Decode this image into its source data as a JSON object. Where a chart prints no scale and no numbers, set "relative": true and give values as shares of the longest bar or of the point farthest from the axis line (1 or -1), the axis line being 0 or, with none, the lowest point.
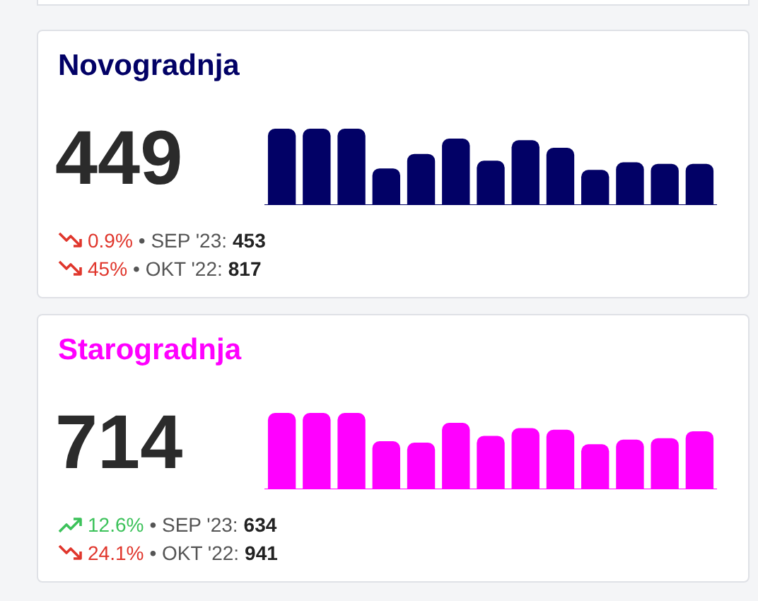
{
  "chart_data": [
    {
      "type": "bar",
      "title": "Novogradnja",
      "relative": true,
      "color": "#020166",
      "categories": [
        null,
        null,
        null,
        null,
        null,
        null,
        null,
        null,
        null,
        null,
        null,
        null,
        null
      ],
      "values": [
        1,
        1,
        1,
        0.48,
        0.67,
        0.87,
        0.58,
        0.85,
        0.75,
        0.46,
        0.56,
        0.54,
        0.54
      ],
      "annotations": [
        "449",
        "0.9%",
        "• SEP '23:",
        "453",
        "45%",
        "• OKT '22:",
        "817"
      ]
    },
    {
      "type": "bar",
      "title": "Starogradnja",
      "relative": true,
      "color": "#ff00ff",
      "categories": [
        null,
        null,
        null,
        null,
        null,
        null,
        null,
        null,
        null,
        null,
        null,
        null,
        null
      ],
      "values": [
        1,
        1,
        1,
        0.63,
        0.61,
        0.87,
        0.7,
        0.8,
        0.78,
        0.59,
        0.65,
        0.67,
        0.76
      ],
      "annotations": [
        "714",
        "12.6%",
        "• SEP '23:",
        "634",
        "24.1%",
        "• OKT '22:",
        "941"
      ]
    }
  ]
}
